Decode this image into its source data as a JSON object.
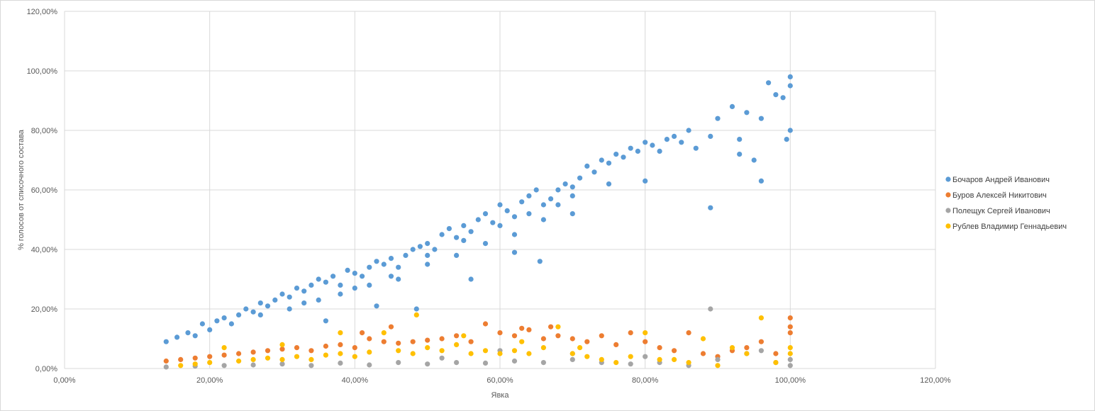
{
  "chart_data": {
    "type": "scatter",
    "title": "",
    "xlabel": "Явка",
    "ylabel": "% голосов от списочного состава",
    "xlim": [
      0,
      120
    ],
    "ylim": [
      0,
      120
    ],
    "x_ticks": [
      0,
      20,
      40,
      60,
      80,
      100,
      120
    ],
    "y_ticks": [
      0,
      20,
      40,
      60,
      80,
      100,
      120
    ],
    "x_tick_labels": [
      "0,00%",
      "20,00%",
      "40,00%",
      "60,00%",
      "80,00%",
      "100,00%",
      "120,00%"
    ],
    "y_tick_labels": [
      "0,00%",
      "20,00%",
      "40,00%",
      "60,00%",
      "80,00%",
      "100,00%",
      "120,00%"
    ],
    "grid": true,
    "legend_position": "right",
    "series": [
      {
        "name": "Бочаров Андрей Иванович",
        "color": "#5b9bd5",
        "points": [
          [
            14,
            9
          ],
          [
            15.5,
            10.5
          ],
          [
            17,
            12
          ],
          [
            18,
            11
          ],
          [
            19,
            15
          ],
          [
            20,
            13
          ],
          [
            21,
            16
          ],
          [
            22,
            17
          ],
          [
            23,
            15
          ],
          [
            24,
            18
          ],
          [
            25,
            20
          ],
          [
            26,
            19
          ],
          [
            27,
            22
          ],
          [
            28,
            21
          ],
          [
            29,
            23
          ],
          [
            30,
            25
          ],
          [
            31,
            24
          ],
          [
            32,
            27
          ],
          [
            33,
            26
          ],
          [
            34,
            28
          ],
          [
            35,
            30
          ],
          [
            36,
            29
          ],
          [
            37,
            31
          ],
          [
            38,
            28
          ],
          [
            39,
            33
          ],
          [
            40,
            32
          ],
          [
            41,
            31
          ],
          [
            42,
            34
          ],
          [
            43,
            36
          ],
          [
            44,
            35
          ],
          [
            45,
            37
          ],
          [
            46,
            34
          ],
          [
            47,
            38
          ],
          [
            48,
            40
          ],
          [
            49,
            41
          ],
          [
            50,
            42
          ],
          [
            51,
            40
          ],
          [
            52,
            45
          ],
          [
            53,
            47
          ],
          [
            54,
            44
          ],
          [
            55,
            48
          ],
          [
            56,
            46
          ],
          [
            57,
            50
          ],
          [
            58,
            52
          ],
          [
            59,
            49
          ],
          [
            60,
            55
          ],
          [
            61,
            53
          ],
          [
            62,
            51
          ],
          [
            63,
            56
          ],
          [
            64,
            58
          ],
          [
            65,
            60
          ],
          [
            66,
            55
          ],
          [
            67,
            57
          ],
          [
            68,
            60
          ],
          [
            69,
            62
          ],
          [
            70,
            61
          ],
          [
            71,
            64
          ],
          [
            72,
            68
          ],
          [
            73,
            66
          ],
          [
            74,
            70
          ],
          [
            75,
            69
          ],
          [
            76,
            72
          ],
          [
            77,
            71
          ],
          [
            78,
            74
          ],
          [
            79,
            73
          ],
          [
            80,
            76
          ],
          [
            81,
            75
          ],
          [
            82,
            73
          ],
          [
            83,
            77
          ],
          [
            84,
            78
          ],
          [
            85,
            76
          ],
          [
            86,
            80
          ],
          [
            87,
            74
          ],
          [
            89,
            78
          ],
          [
            90,
            84
          ],
          [
            92,
            88
          ],
          [
            93,
            77
          ],
          [
            94,
            86
          ],
          [
            96,
            84
          ],
          [
            97,
            96
          ],
          [
            98,
            92
          ],
          [
            99,
            91
          ],
          [
            100,
            98
          ],
          [
            100,
            95
          ],
          [
            100,
            80
          ],
          [
            99.5,
            77
          ],
          [
            65.5,
            36
          ],
          [
            89,
            54
          ],
          [
            48.5,
            20
          ],
          [
            43,
            21
          ],
          [
            36,
            16
          ],
          [
            56,
            30
          ],
          [
            62,
            39
          ],
          [
            70,
            58
          ],
          [
            75,
            62
          ],
          [
            80,
            63
          ],
          [
            95,
            70
          ],
          [
            96,
            63
          ],
          [
            93,
            72
          ],
          [
            33,
            22
          ],
          [
            38,
            25
          ],
          [
            42,
            28
          ],
          [
            46,
            30
          ],
          [
            50,
            35
          ],
          [
            54,
            38
          ],
          [
            58,
            42
          ],
          [
            62,
            45
          ],
          [
            66,
            50
          ],
          [
            70,
            52
          ],
          [
            27,
            18
          ],
          [
            31,
            20
          ],
          [
            35,
            23
          ],
          [
            40,
            27
          ],
          [
            45,
            31
          ],
          [
            50,
            38
          ],
          [
            55,
            43
          ],
          [
            60,
            48
          ],
          [
            64,
            52
          ],
          [
            68,
            55
          ]
        ]
      },
      {
        "name": "Буров Алексей Никитович",
        "color": "#ed7d31",
        "points": [
          [
            14,
            2.5
          ],
          [
            16,
            3
          ],
          [
            18,
            3.5
          ],
          [
            20,
            4
          ],
          [
            22,
            4.5
          ],
          [
            24,
            5
          ],
          [
            26,
            5.5
          ],
          [
            28,
            6
          ],
          [
            30,
            6.5
          ],
          [
            32,
            7
          ],
          [
            34,
            6
          ],
          [
            36,
            7.5
          ],
          [
            38,
            8
          ],
          [
            40,
            7
          ],
          [
            42,
            10
          ],
          [
            44,
            9
          ],
          [
            46,
            8.5
          ],
          [
            48,
            9
          ],
          [
            50,
            9.5
          ],
          [
            52,
            10
          ],
          [
            54,
            11
          ],
          [
            56,
            9
          ],
          [
            58,
            15
          ],
          [
            60,
            12
          ],
          [
            62,
            11
          ],
          [
            64,
            13
          ],
          [
            66,
            10
          ],
          [
            68,
            11
          ],
          [
            70,
            10
          ],
          [
            72,
            9
          ],
          [
            74,
            11
          ],
          [
            76,
            8
          ],
          [
            78,
            12
          ],
          [
            80,
            9
          ],
          [
            82,
            7
          ],
          [
            84,
            6
          ],
          [
            86,
            12
          ],
          [
            88,
            5
          ],
          [
            90,
            4
          ],
          [
            92,
            6
          ],
          [
            94,
            7
          ],
          [
            96,
            9
          ],
          [
            98,
            5
          ],
          [
            100,
            17
          ],
          [
            100,
            14
          ],
          [
            100,
            12
          ],
          [
            41,
            12
          ],
          [
            45,
            14
          ],
          [
            63,
            13.5
          ],
          [
            67,
            14
          ]
        ]
      },
      {
        "name": "Полещук Сергей Иванович",
        "color": "#a5a5a5",
        "points": [
          [
            14,
            0.5
          ],
          [
            18,
            0.8
          ],
          [
            22,
            1
          ],
          [
            26,
            1.2
          ],
          [
            30,
            1.5
          ],
          [
            34,
            1
          ],
          [
            38,
            1.8
          ],
          [
            42,
            1.2
          ],
          [
            46,
            2
          ],
          [
            50,
            1.5
          ],
          [
            54,
            2
          ],
          [
            58,
            1.8
          ],
          [
            62,
            2.5
          ],
          [
            66,
            2
          ],
          [
            70,
            3
          ],
          [
            74,
            2
          ],
          [
            78,
            1.5
          ],
          [
            82,
            2
          ],
          [
            86,
            1
          ],
          [
            89,
            20
          ],
          [
            90,
            3
          ],
          [
            94,
            5
          ],
          [
            96,
            6
          ],
          [
            98,
            2
          ],
          [
            100,
            3
          ],
          [
            100,
            1
          ],
          [
            60,
            6
          ],
          [
            70,
            5
          ],
          [
            80,
            4
          ],
          [
            52,
            3.5
          ]
        ]
      },
      {
        "name": "Рублев Владимир Геннадьевич",
        "color": "#ffc000",
        "points": [
          [
            16,
            1
          ],
          [
            18,
            1.5
          ],
          [
            20,
            2
          ],
          [
            22,
            7
          ],
          [
            24,
            2.5
          ],
          [
            26,
            3
          ],
          [
            28,
            3.5
          ],
          [
            30,
            3
          ],
          [
            32,
            4
          ],
          [
            34,
            3
          ],
          [
            36,
            4.5
          ],
          [
            38,
            5
          ],
          [
            40,
            4
          ],
          [
            42,
            5.5
          ],
          [
            44,
            12
          ],
          [
            46,
            6
          ],
          [
            48,
            5
          ],
          [
            50,
            7
          ],
          [
            52,
            6
          ],
          [
            54,
            8
          ],
          [
            56,
            5
          ],
          [
            58,
            6
          ],
          [
            60,
            5
          ],
          [
            62,
            6
          ],
          [
            64,
            5
          ],
          [
            66,
            7
          ],
          [
            68,
            14
          ],
          [
            70,
            5
          ],
          [
            72,
            4
          ],
          [
            74,
            3
          ],
          [
            76,
            2
          ],
          [
            78,
            4
          ],
          [
            80,
            12
          ],
          [
            82,
            3
          ],
          [
            84,
            3
          ],
          [
            86,
            2
          ],
          [
            88,
            10
          ],
          [
            90,
            1
          ],
          [
            92,
            7
          ],
          [
            94,
            5
          ],
          [
            96,
            17
          ],
          [
            98,
            2
          ],
          [
            100,
            7
          ],
          [
            100,
            5
          ],
          [
            48.5,
            18
          ],
          [
            55,
            11
          ],
          [
            63,
            9
          ],
          [
            38,
            12
          ],
          [
            30,
            8
          ],
          [
            71,
            7
          ]
        ]
      }
    ]
  }
}
